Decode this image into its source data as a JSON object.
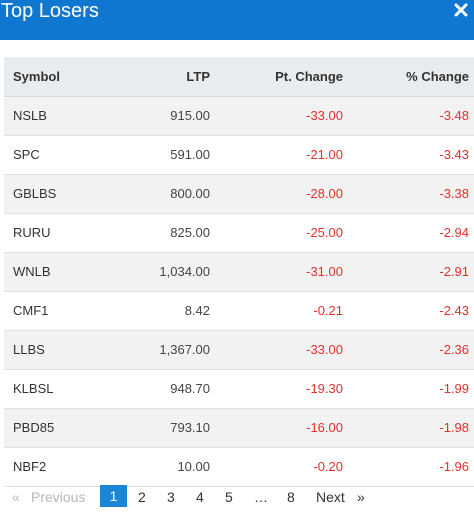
{
  "header": {
    "title": "Top Losers",
    "close_icon": "close-x-icon"
  },
  "table": {
    "columns": [
      "Symbol",
      "LTP",
      "Pt. Change",
      "% Change"
    ],
    "rows": [
      {
        "symbol": "NSLB",
        "ltp": "915.00",
        "pt": "-33.00",
        "pct": "-3.48"
      },
      {
        "symbol": "SPC",
        "ltp": "591.00",
        "pt": "-21.00",
        "pct": "-3.43"
      },
      {
        "symbol": "GBLBS",
        "ltp": "800.00",
        "pt": "-28.00",
        "pct": "-3.38"
      },
      {
        "symbol": "RURU",
        "ltp": "825.00",
        "pt": "-25.00",
        "pct": "-2.94"
      },
      {
        "symbol": "WNLB",
        "ltp": "1,034.00",
        "pt": "-31.00",
        "pct": "-2.91"
      },
      {
        "symbol": "CMF1",
        "ltp": "8.42",
        "pt": "-0.21",
        "pct": "-2.43"
      },
      {
        "symbol": "LLBS",
        "ltp": "1,367.00",
        "pt": "-33.00",
        "pct": "-2.36"
      },
      {
        "symbol": "KLBSL",
        "ltp": "948.70",
        "pt": "-19.30",
        "pct": "-1.99"
      },
      {
        "symbol": "PBD85",
        "ltp": "793.10",
        "pt": "-16.00",
        "pct": "-1.98"
      },
      {
        "symbol": "NBF2",
        "ltp": "10.00",
        "pt": "-0.20",
        "pct": "-1.96"
      }
    ]
  },
  "pagination": {
    "prev_arrow": "«",
    "previous": "Previous",
    "pages": [
      "1",
      "2",
      "3",
      "4",
      "5"
    ],
    "ellipsis": "…",
    "last": "8",
    "next": "Next",
    "next_arrow": "»",
    "current": "1"
  },
  "colors": {
    "header_bg": "#0f77d0",
    "negative": "#e0312b",
    "active_page": "#1a86d6"
  }
}
